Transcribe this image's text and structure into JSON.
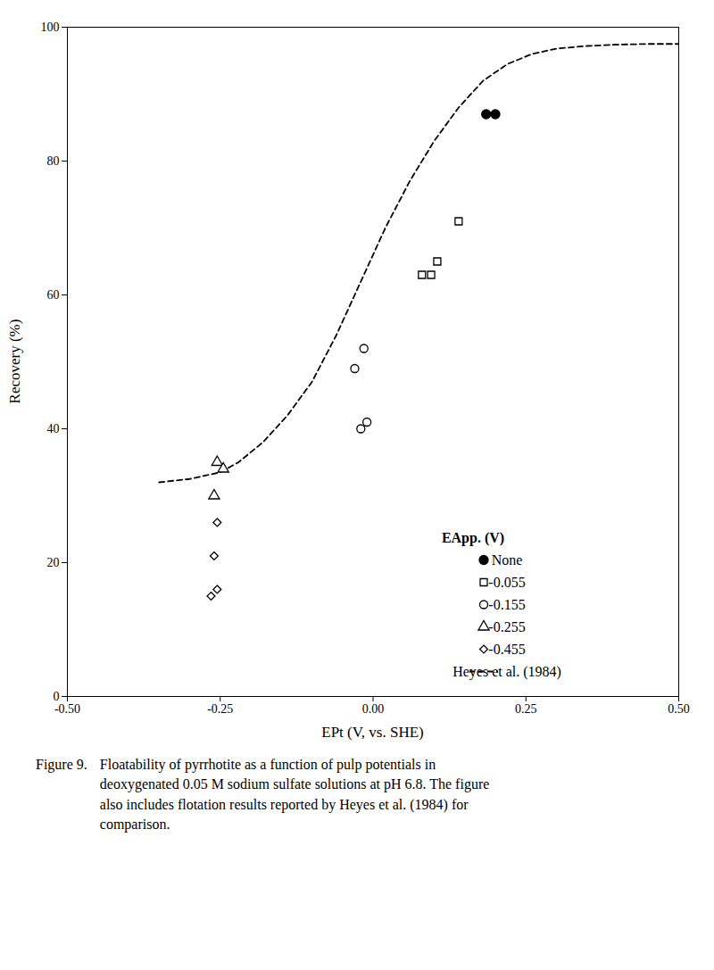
{
  "chart_data": {
    "type": "scatter",
    "xlabel": "EPt (V, vs. SHE)",
    "ylabel": "Recovery (%)",
    "xlim": [
      -0.5,
      0.5
    ],
    "ylim": [
      0,
      100
    ],
    "xticks": [
      {
        "value": -0.5,
        "label": "-0.50"
      },
      {
        "value": -0.25,
        "label": "-0.25"
      },
      {
        "value": 0.0,
        "label": "0.00"
      },
      {
        "value": 0.25,
        "label": "0.25"
      },
      {
        "value": 0.5,
        "label": "0.50"
      }
    ],
    "yticks": [
      0,
      20,
      40,
      60,
      80,
      100
    ],
    "grid": false,
    "legend": "lower right",
    "legend_title": "EApp. (V)",
    "series": [
      {
        "name": "None",
        "type": "scatter",
        "marker": "filled circle",
        "color": "black",
        "x": [
          0.185,
          0.2
        ],
        "values": [
          87,
          87
        ]
      },
      {
        "name": "-0.055",
        "type": "scatter",
        "marker": "open square",
        "color": "black",
        "x": [
          0.08,
          0.095,
          0.105,
          0.14
        ],
        "values": [
          63,
          63,
          65,
          71
        ]
      },
      {
        "name": "-0.155",
        "type": "scatter",
        "marker": "open circle",
        "color": "black",
        "x": [
          -0.02,
          -0.01,
          -0.03,
          -0.015
        ],
        "values": [
          40,
          41,
          49,
          52
        ]
      },
      {
        "name": "-0.255",
        "type": "scatter",
        "marker": "open triangle",
        "color": "black",
        "x": [
          -0.255,
          -0.245,
          -0.26
        ],
        "values": [
          35,
          34,
          30
        ]
      },
      {
        "name": "-0.455",
        "type": "scatter",
        "marker": "open diamond",
        "color": "black",
        "x": [
          -0.265,
          -0.255,
          -0.26,
          -0.255
        ],
        "values": [
          15,
          16,
          21,
          26
        ]
      },
      {
        "name": "Heyes et al. (1984)",
        "type": "line",
        "line_style": "dashed",
        "color": "black",
        "x": [
          -0.35,
          -0.3,
          -0.25,
          -0.22,
          -0.18,
          -0.14,
          -0.1,
          -0.06,
          -0.02,
          0.02,
          0.06,
          0.1,
          0.14,
          0.18,
          0.22,
          0.26,
          0.3,
          0.35,
          0.4,
          0.45,
          0.5
        ],
        "values": [
          32,
          32.5,
          33.5,
          35,
          38,
          42,
          47,
          54,
          62,
          70,
          77,
          83,
          88,
          92,
          94.5,
          96,
          96.8,
          97.2,
          97.4,
          97.5,
          97.5
        ]
      }
    ],
    "figure_label": "Figure 9.",
    "caption": "Floatability of pyrrhotite as a function of pulp potentials in\ndeoxygenated 0.05 M sodium sulfate solutions at pH 6.8. The figure\nalso includes flotation results reported by Heyes et al. (1984) for\ncomparison."
  }
}
